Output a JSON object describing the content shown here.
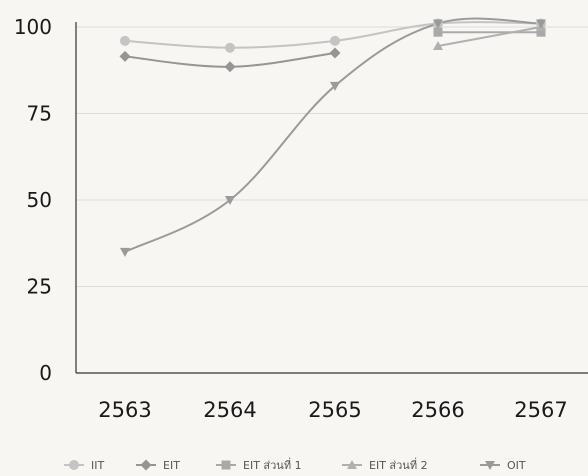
{
  "chart_data": {
    "type": "line",
    "title": "",
    "xlabel": "",
    "ylabel": "",
    "categories": [
      "2563",
      "2564",
      "2565",
      "2566",
      "2567"
    ],
    "ylim": [
      0,
      100
    ],
    "yticks": [
      0,
      25,
      50,
      75,
      100
    ],
    "grid": true,
    "legend_position": "bottom",
    "series": [
      {
        "name": "IIT",
        "marker": "circle",
        "color": "#c4c4c4",
        "values": [
          96,
          94,
          96,
          101,
          101
        ]
      },
      {
        "name": "EIT",
        "marker": "diamond",
        "color": "#959595",
        "values": [
          91.5,
          88.5,
          92.5,
          null,
          null
        ]
      },
      {
        "name": "EIT ส่วนที่ 1",
        "marker": "square",
        "color": "#a9a9a9",
        "values": [
          null,
          null,
          null,
          98.5,
          98.5
        ]
      },
      {
        "name": "EIT ส่วนที่ 2",
        "marker": "triangle-up",
        "color": "#b0b0b0",
        "values": [
          null,
          null,
          null,
          94.5,
          100
        ]
      },
      {
        "name": "OIT",
        "marker": "triangle-down",
        "color": "#9a9a9a",
        "values": [
          35,
          50,
          83,
          101,
          101
        ]
      }
    ]
  }
}
